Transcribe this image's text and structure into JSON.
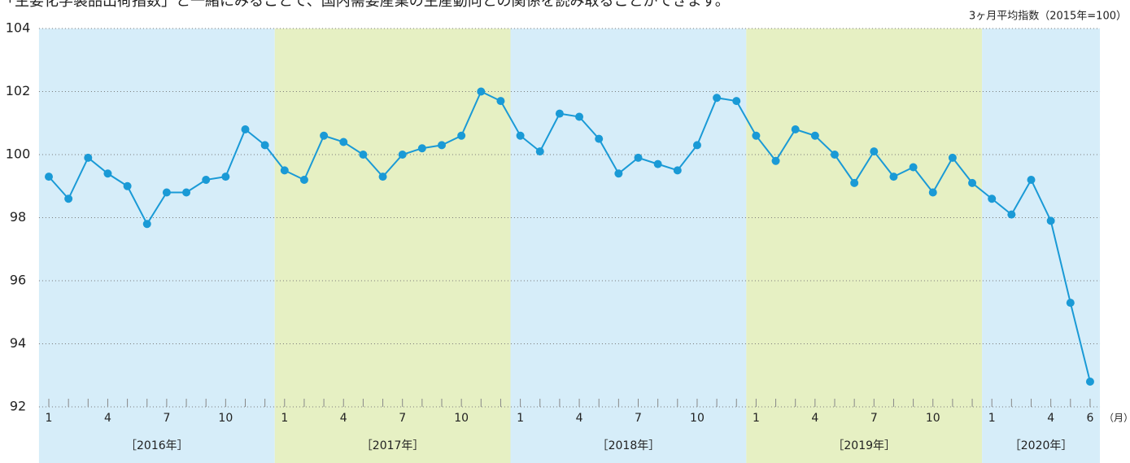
{
  "chart_data": {
    "type": "line",
    "title": "「主要化学製品出荷指数」と一緒にみることで、国内需要産業の生産動向との関係を読み取ることができます。",
    "y_unit_label": "3ヶ月平均指数（2015年=100）",
    "x_unit_label": "（月）",
    "categories": [
      "1",
      null,
      null,
      "4",
      null,
      null,
      "7",
      null,
      null,
      "10",
      null,
      null,
      "1",
      null,
      null,
      "4",
      null,
      null,
      "7",
      null,
      null,
      "10",
      null,
      null,
      "1",
      null,
      null,
      "4",
      null,
      null,
      "7",
      null,
      null,
      "10",
      null,
      null,
      "1",
      null,
      null,
      "4",
      null,
      null,
      "7",
      null,
      null,
      "10",
      null,
      null,
      "1",
      null,
      null,
      "4",
      null,
      "6"
    ],
    "year_groups": [
      {
        "label": "［2016年］",
        "span": 12,
        "color": "#d6edf9"
      },
      {
        "label": "［2017年］",
        "span": 12,
        "color": "#e6f0c3"
      },
      {
        "label": "［2018年］",
        "span": 12,
        "color": "#d6edf9"
      },
      {
        "label": "［2019年］",
        "span": 12,
        "color": "#e6f0c3"
      },
      {
        "label": "［2020年］",
        "span": 6,
        "color": "#d6edf9"
      }
    ],
    "series": [
      {
        "name": "3ヶ月平均指数",
        "color": "#1a9ad6",
        "values": [
          99.3,
          98.6,
          99.9,
          99.4,
          99.0,
          97.8,
          98.8,
          98.8,
          99.2,
          99.3,
          100.8,
          100.3,
          99.5,
          99.2,
          100.6,
          100.4,
          100.0,
          99.3,
          100.0,
          100.2,
          100.3,
          100.6,
          102.0,
          101.7,
          100.6,
          100.1,
          101.3,
          101.2,
          100.5,
          99.4,
          99.9,
          99.7,
          99.5,
          100.3,
          101.8,
          101.7,
          100.6,
          99.8,
          100.8,
          100.6,
          100.0,
          99.1,
          100.1,
          99.3,
          99.6,
          98.8,
          99.9,
          99.1,
          98.6,
          98.1,
          99.2,
          97.9,
          95.3,
          92.8
        ]
      }
    ],
    "ylim": [
      92,
      104
    ],
    "yticks": [
      92,
      94,
      96,
      98,
      100,
      102,
      104
    ],
    "grid": true
  }
}
